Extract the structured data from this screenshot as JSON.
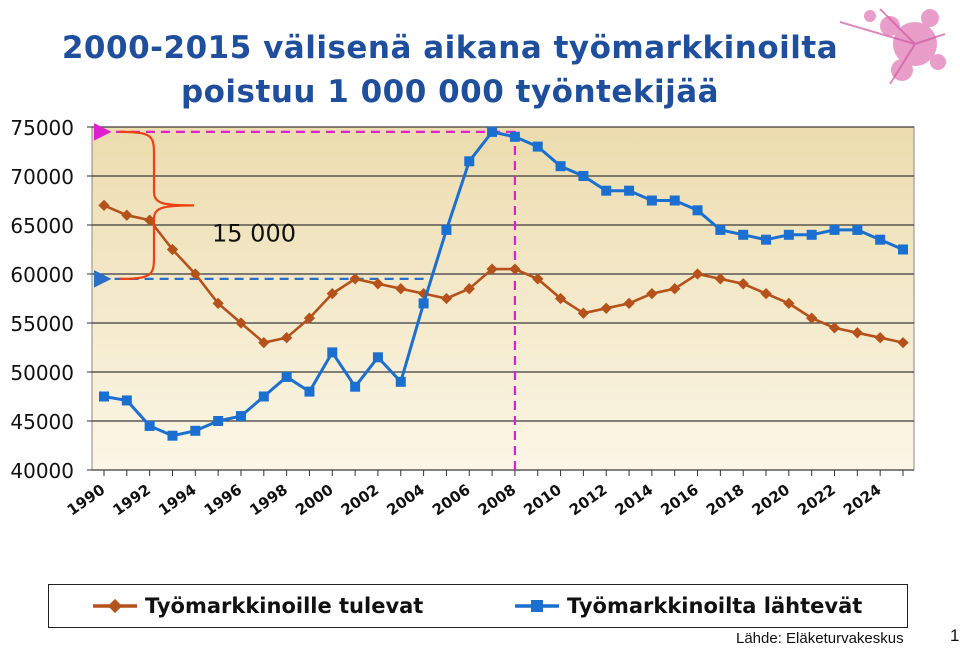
{
  "slide": {
    "title_line1": "2000-2015 välisenä aikana työmarkkinoilta",
    "title_line2": "poistuu 1 000 000 työntekijää",
    "source": "Lähde: Eläketurvakeskus",
    "page_number": "1"
  },
  "chart_data": {
    "type": "line",
    "title": "",
    "xlabel": "",
    "ylabel": "",
    "x": [
      1990,
      1991,
      1992,
      1993,
      1994,
      1995,
      1996,
      1997,
      1998,
      1999,
      2000,
      2001,
      2002,
      2003,
      2004,
      2005,
      2006,
      2007,
      2008,
      2009,
      2010,
      2011,
      2012,
      2013,
      2014,
      2015,
      2016,
      2017,
      2018,
      2019,
      2020,
      2021,
      2022,
      2023,
      2024,
      2025
    ],
    "x_tick_labels": [
      "1990",
      "1992",
      "1994",
      "1996",
      "1998",
      "2000",
      "2002",
      "2004",
      "2006",
      "2008",
      "2010",
      "2012",
      "2014",
      "2016",
      "2018",
      "2020",
      "2022",
      "2024"
    ],
    "y_tick_labels": [
      "40000",
      "45000",
      "50000",
      "55000",
      "60000",
      "65000",
      "70000",
      "75000"
    ],
    "ylim": [
      40000,
      75000
    ],
    "grid": true,
    "legend_position": "bottom",
    "series": [
      {
        "name": "Työmarkkinoille tulevat",
        "color": "#b5521b",
        "marker": "diamond",
        "values": [
          67000,
          66000,
          65500,
          62500,
          60000,
          57000,
          55000,
          53000,
          53500,
          55500,
          58000,
          59500,
          59000,
          58500,
          58000,
          57500,
          58500,
          60500,
          60500,
          59500,
          57500,
          56000,
          56500,
          57000,
          58000,
          58500,
          60000,
          59500,
          59000,
          58000,
          57000,
          55500,
          54500,
          54000,
          53500,
          53000
        ]
      },
      {
        "name": "Työmarkkinoilta lähtevät",
        "color": "#1b6fd1",
        "marker": "square",
        "values": [
          47500,
          47100,
          44500,
          43500,
          44000,
          45000,
          45500,
          47500,
          49500,
          48000,
          52000,
          48500,
          51500,
          49000,
          57000,
          64500,
          71500,
          74500,
          74000,
          73000,
          71000,
          70000,
          68500,
          68500,
          67500,
          67500,
          66500,
          64500,
          64000,
          63500,
          64000,
          64000,
          64500,
          64500,
          63500,
          62500
        ]
      }
    ],
    "annotations": [
      {
        "text": "15 000",
        "type": "brace"
      }
    ],
    "reference_lines": [
      {
        "orientation": "horizontal",
        "y": 74500,
        "color": "#e020d0",
        "style": "dashed",
        "arrow": "left"
      },
      {
        "orientation": "horizontal",
        "y": 59500,
        "color": "#2a6fc9",
        "style": "dashed",
        "arrow": "left"
      },
      {
        "orientation": "vertical",
        "x": 2008,
        "color": "#e020d0",
        "style": "dashed"
      }
    ],
    "colors": {
      "plot_bg_top": "#ecdcae",
      "plot_bg_bottom": "#fbf6e6",
      "brace": "#ee4010"
    }
  }
}
